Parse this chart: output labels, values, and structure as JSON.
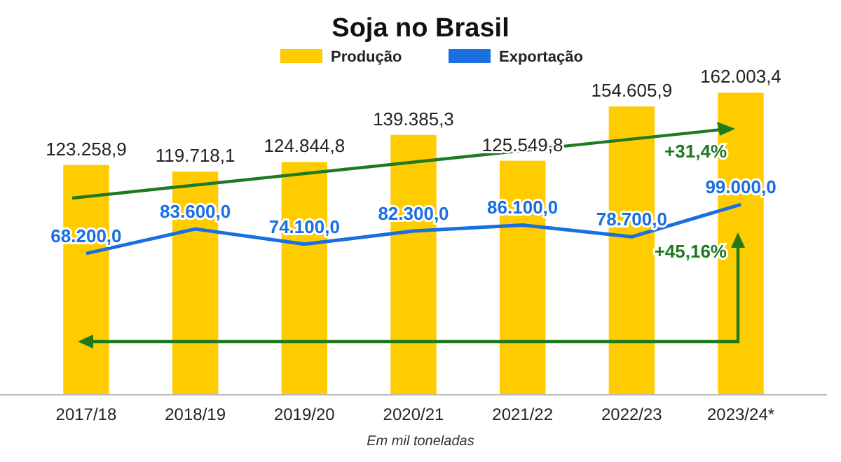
{
  "chart_data": {
    "type": "bar",
    "title": "Soja no Brasil",
    "categories": [
      "2017/18",
      "2018/19",
      "2019/20",
      "2020/21",
      "2021/22",
      "2022/23",
      "2023/24*"
    ],
    "series": [
      {
        "name": "Produção",
        "color": "#ffcc00",
        "values": [
          123258.9,
          119718.1,
          124844.8,
          139385.3,
          125549.8,
          154605.9,
          162003.4
        ],
        "value_labels": [
          "123.258,9",
          "119.718,1",
          "124.844,8",
          "139.385,3",
          "125.549,8",
          "154.605,9",
          "162.003,4"
        ]
      },
      {
        "name": "Exportação",
        "type": "line",
        "axis": "y2",
        "color": "#1a6fe0",
        "values": [
          68200,
          83600,
          74100,
          82300,
          86100,
          78700,
          99000
        ],
        "value_labels": [
          "68.200,0",
          "83.600,0",
          "74.100,0",
          "82.300,0",
          "86.100,0",
          "78.700,0",
          "99.000,0"
        ]
      }
    ],
    "tick_labels": "x",
    "legend": "top",
    "marker": "none",
    "line_style": "solid",
    "annotations": [
      "+31,4%",
      "+45,16%",
      "Em mil toneladas"
    ]
  }
}
